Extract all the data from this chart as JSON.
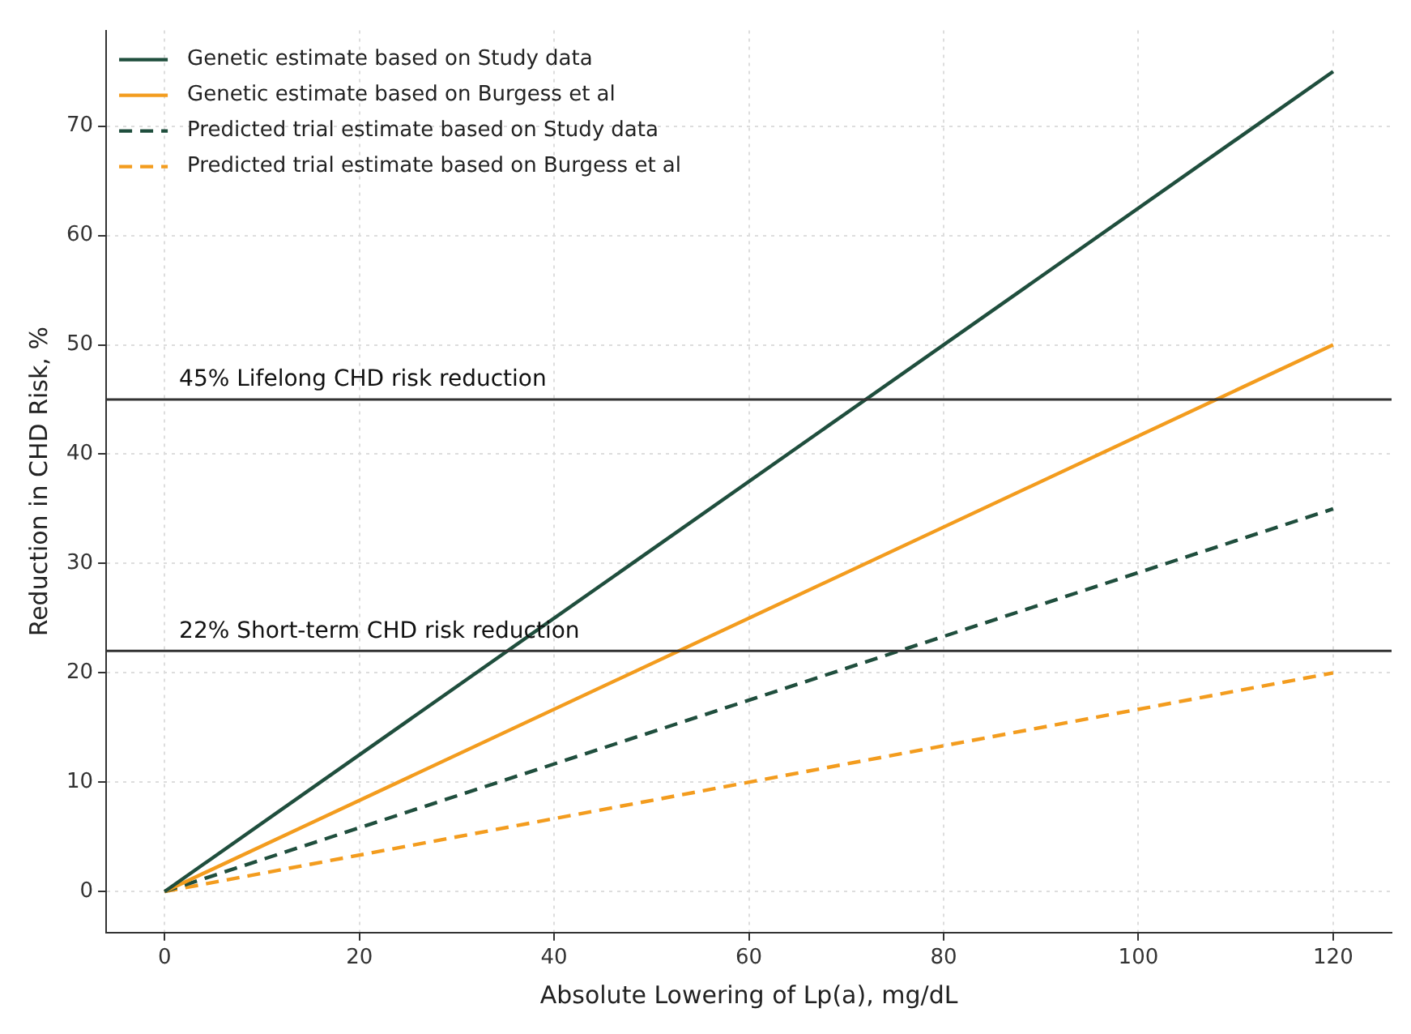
{
  "chart_data": {
    "type": "line",
    "xlabel": "Absolute Lowering of Lp(a), mg/dL",
    "ylabel": "Reduction in CHD Risk, %",
    "x": [
      0,
      120
    ],
    "series": [
      {
        "name": "Genetic estimate based on Study data",
        "color": "#1f4e3d",
        "values": [
          0,
          75
        ],
        "line_style": "solid"
      },
      {
        "name": "Genetic estimate based on Burgess et al",
        "color": "#f39c1e",
        "values": [
          0,
          50
        ],
        "line_style": "solid"
      },
      {
        "name": "Predicted trial estimate based on Study data",
        "color": "#1f4e3d",
        "values": [
          0,
          35
        ],
        "line_style": "dashed"
      },
      {
        "name": "Predicted trial estimate based on Burgess et al",
        "color": "#f39c1e",
        "values": [
          0,
          20
        ],
        "line_style": "dashed"
      }
    ],
    "ref_lines": [
      {
        "axis": "y",
        "value": 45,
        "label": "45% Lifelong CHD risk reduction",
        "color": "#333333"
      },
      {
        "axis": "y",
        "value": 22,
        "label": "22% Short-term CHD risk reduction",
        "color": "#333333"
      }
    ],
    "xlim": [
      -6,
      126
    ],
    "ylim": [
      -3.75,
      78.75
    ],
    "xticks": [
      0,
      20,
      40,
      60,
      80,
      100,
      120
    ],
    "yticks": [
      0,
      10,
      20,
      30,
      40,
      50,
      60,
      70
    ],
    "grid": true,
    "legend": "top left"
  }
}
